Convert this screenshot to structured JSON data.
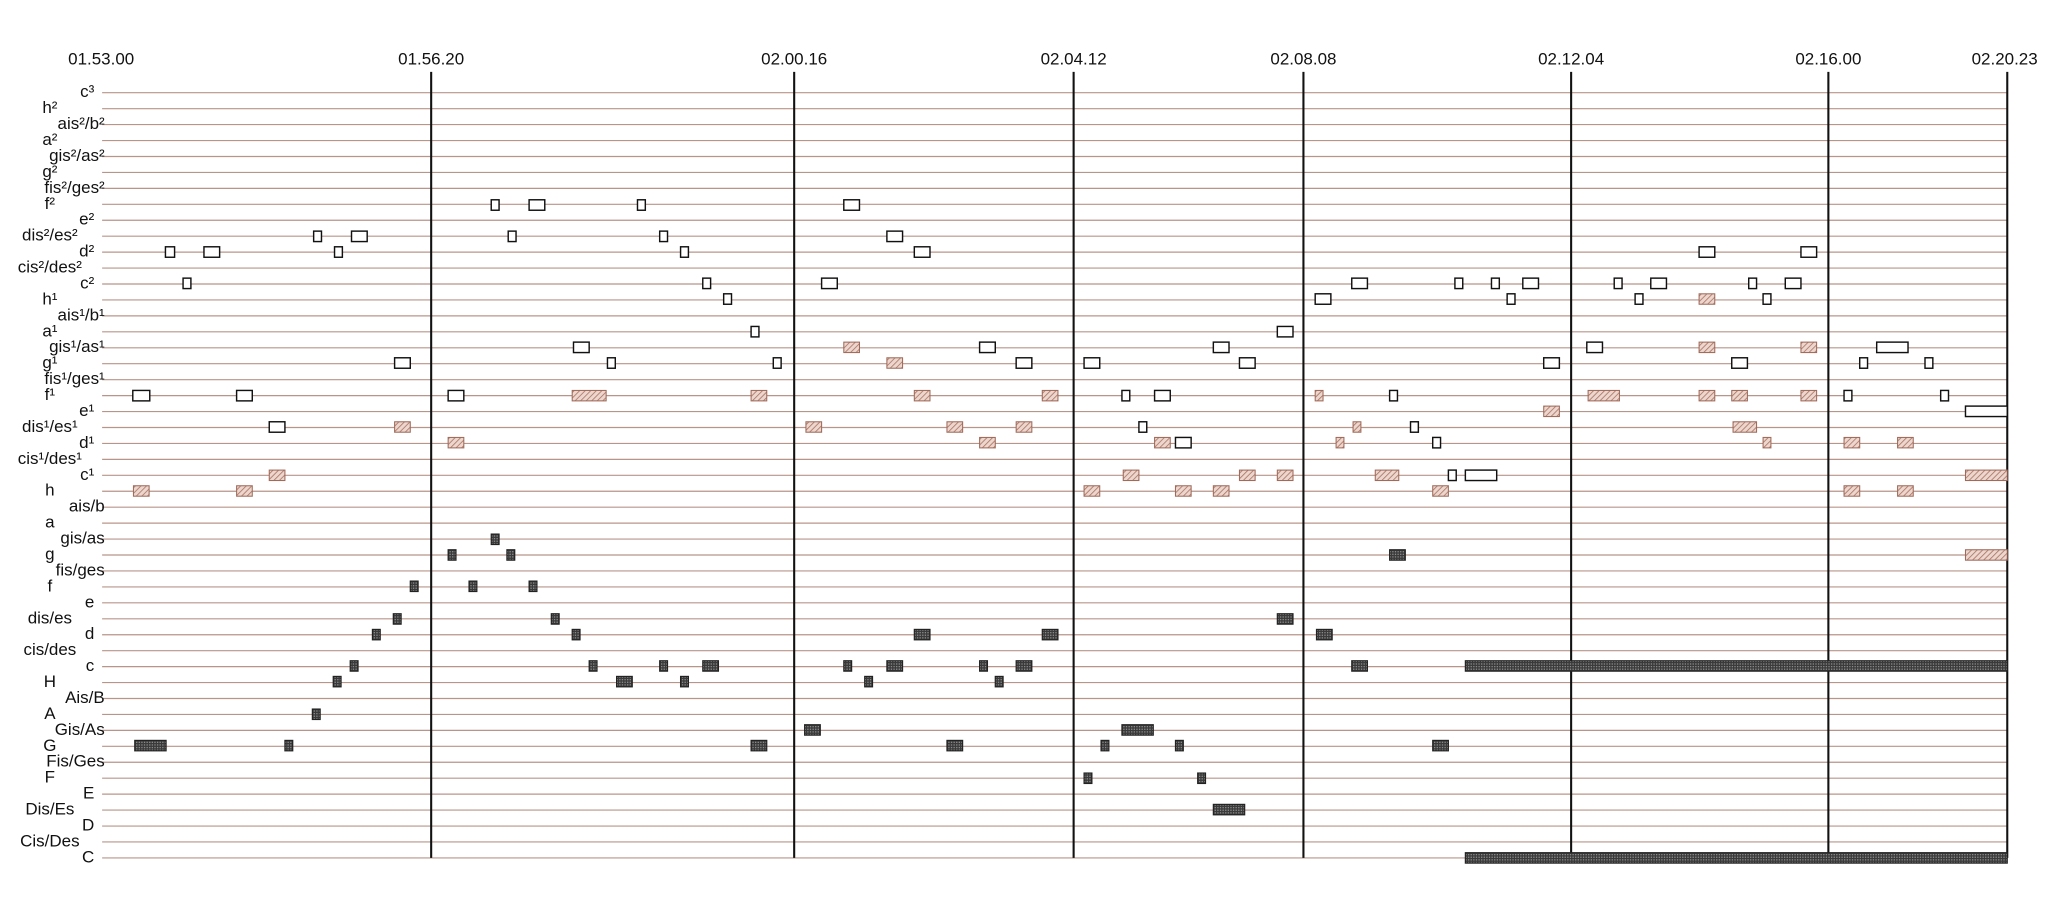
{
  "time_labels": [
    "01.53.00",
    "01.56.20",
    "02.00.16",
    "02.04.12",
    "02.08.08",
    "02.12.04",
    "02.16.00",
    "02.20.23"
  ],
  "pitch_labels": [
    "c³",
    "h²",
    "ais²/b²",
    "a²",
    "gis²/as²",
    "g²",
    "fis²/ges²",
    "f²",
    "e²",
    "dis²/es²",
    "d²",
    "cis²/des²",
    "c²",
    "h¹",
    "ais¹/b¹",
    "a¹",
    "gis¹/as¹",
    "g¹",
    "fis¹/ges¹",
    "f¹",
    "e¹",
    "dis¹/es¹",
    "d¹",
    "cis¹/des¹",
    "c¹",
    "h",
    "ais/b",
    "a",
    "gis/as",
    "g",
    "fis/ges",
    "f",
    "e",
    "dis/es",
    "d",
    "cis/des",
    "c",
    "H",
    "Ais/B",
    "A",
    "Gis/As",
    "G",
    "Fis/Ges",
    "F",
    "E",
    "Dis/Es",
    "D",
    "Cis/Des",
    "C"
  ]
}
